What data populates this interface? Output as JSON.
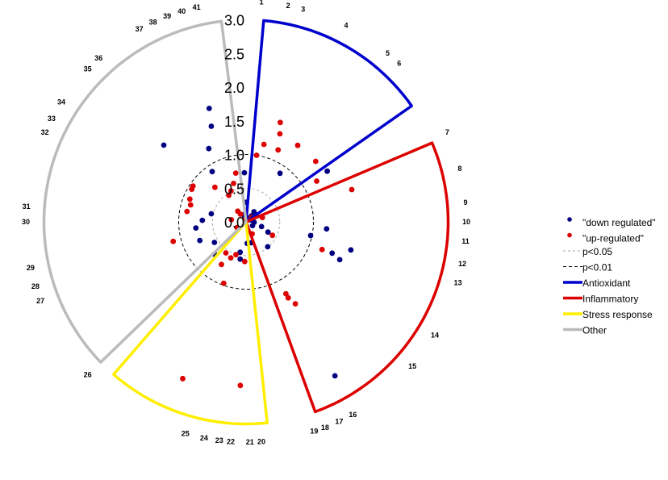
{
  "chart_data": {
    "type": "scatter",
    "subtype": "radial",
    "radial_ticks": [
      "0.0",
      "0.5",
      "1.0",
      "1.5",
      "2.0",
      "2.5",
      "3.0"
    ],
    "radial_range": [
      0,
      3.0
    ],
    "significance_circles": [
      {
        "label": "p<0.05",
        "radius": 0.5,
        "color": "#aaaaaa",
        "dash": "3,3"
      },
      {
        "label": "p<0.01",
        "radius": 1.0,
        "color": "#000000",
        "dash": "4,3"
      }
    ],
    "categories": [
      {
        "label": "Antioxidant",
        "color": "#0000cc",
        "start_angle": 5,
        "end_angle": 55,
        "radius": 3.0,
        "genes": [
          "1",
          "2",
          "3",
          "4",
          "5",
          "6"
        ]
      },
      {
        "label": "Inflammatory",
        "color": "#dd0000",
        "start_angle": 67,
        "end_angle": 160,
        "radius": 3.0,
        "genes": [
          "7",
          "8",
          "9",
          "10",
          "11",
          "12",
          "13",
          "14",
          "15",
          "16",
          "17",
          "18",
          "19"
        ]
      },
      {
        "label": "Stress response",
        "color": "#ffee00",
        "start_angle": 174,
        "end_angle": 221,
        "radius": 3.0,
        "genes": [
          "20",
          "21",
          "22",
          "23",
          "24",
          "25"
        ]
      },
      {
        "label": "Other",
        "color": "#bbbbbb",
        "start_angle": 226,
        "end_angle": 353,
        "radius": 3.0,
        "genes": [
          "26",
          "27",
          "28",
          "29",
          "30",
          "31",
          "32",
          "33",
          "34",
          "35",
          "36",
          "37",
          "38",
          "39",
          "40",
          "41"
        ]
      }
    ],
    "gene_labels": [
      {
        "id": "1",
        "angle": 4
      },
      {
        "id": "2",
        "angle": 11
      },
      {
        "id": "3",
        "angle": 15
      },
      {
        "id": "4",
        "angle": 27
      },
      {
        "id": "5",
        "angle": 40
      },
      {
        "id": "6",
        "angle": 44
      },
      {
        "id": "7",
        "angle": 66
      },
      {
        "id": "8",
        "angle": 76
      },
      {
        "id": "9",
        "angle": 85
      },
      {
        "id": "10",
        "angle": 90
      },
      {
        "id": "11",
        "angle": 95
      },
      {
        "id": "12",
        "angle": 101
      },
      {
        "id": "13",
        "angle": 106
      },
      {
        "id": "14",
        "angle": 121
      },
      {
        "id": "15",
        "angle": 131
      },
      {
        "id": "16",
        "angle": 151
      },
      {
        "id": "17",
        "angle": 155
      },
      {
        "id": "18",
        "angle": 159
      },
      {
        "id": "19",
        "angle": 162
      },
      {
        "id": "20",
        "angle": 176
      },
      {
        "id": "21",
        "angle": 179
      },
      {
        "id": "22",
        "angle": 184
      },
      {
        "id": "23",
        "angle": 187
      },
      {
        "id": "24",
        "angle": 191
      },
      {
        "id": "25",
        "angle": 196
      },
      {
        "id": "26",
        "angle": 226
      },
      {
        "id": "27",
        "angle": 249
      },
      {
        "id": "28",
        "angle": 253
      },
      {
        "id": "29",
        "angle": 258
      },
      {
        "id": "30",
        "angle": 270
      },
      {
        "id": "31",
        "angle": 274
      },
      {
        "id": "32",
        "angle": 294
      },
      {
        "id": "33",
        "angle": 298
      },
      {
        "id": "34",
        "angle": 303
      },
      {
        "id": "35",
        "angle": 314
      },
      {
        "id": "36",
        "angle": 318
      },
      {
        "id": "37",
        "angle": 331
      },
      {
        "id": "38",
        "angle": 335
      },
      {
        "id": "39",
        "angle": 339
      },
      {
        "id": "40",
        "angle": 343
      },
      {
        "id": "41",
        "angle": 347
      }
    ],
    "series": [
      {
        "name": "\"down regulated\"",
        "color": "#000080",
        "points": [
          {
            "angle": 1,
            "r": 0.03
          },
          {
            "angle": 27,
            "r": 0.03
          },
          {
            "angle": 14,
            "r": 0.04
          },
          {
            "angle": 27,
            "r": 0.06
          },
          {
            "angle": 66,
            "r": 0.07
          },
          {
            "angle": 346,
            "r": 0.08
          },
          {
            "angle": 351,
            "r": 0.1
          },
          {
            "angle": 120,
            "r": 0.11
          },
          {
            "angle": 344,
            "r": 0.11
          },
          {
            "angle": 55,
            "r": 0.18
          },
          {
            "angle": 38,
            "r": 0.19
          },
          {
            "angle": 42,
            "r": 0.12
          },
          {
            "angle": 93,
            "r": 0.12
          },
          {
            "angle": 107,
            "r": 0.24
          },
          {
            "angle": 0,
            "r": 0.29
          },
          {
            "angle": 177,
            "r": 0.32
          },
          {
            "angle": 166,
            "r": 0.32
          },
          {
            "angle": 115,
            "r": 0.36
          },
          {
            "angle": 139,
            "r": 0.49
          },
          {
            "angle": 191,
            "r": 0.46
          },
          {
            "angle": 237,
            "r": 0.56
          },
          {
            "angle": 224,
            "r": 0.67
          },
          {
            "angle": 189,
            "r": 0.56
          },
          {
            "angle": 263,
            "r": 0.75
          },
          {
            "angle": 248,
            "r": 0.74
          },
          {
            "angle": 272,
            "r": 0.65
          },
          {
            "angle": 283,
            "r": 0.53
          },
          {
            "angle": 326,
            "r": 0.9
          },
          {
            "angle": 358,
            "r": 0.73
          },
          {
            "angle": 35,
            "r": 0.88
          },
          {
            "angle": 333,
            "r": 1.22
          },
          {
            "angle": 313,
            "r": 1.67
          },
          {
            "angle": 340,
            "r": 1.51
          },
          {
            "angle": 342,
            "r": 1.77
          },
          {
            "angle": 95,
            "r": 1.2
          },
          {
            "angle": 102,
            "r": 0.98
          },
          {
            "angle": 105,
            "r": 1.61
          },
          {
            "angle": 110,
            "r": 1.36
          },
          {
            "angle": 112,
            "r": 1.5
          },
          {
            "angle": 58,
            "r": 1.42
          },
          {
            "angle": 150,
            "r": 2.64
          }
        ]
      },
      {
        "name": "\"up-regulated\"",
        "color": "#dd0000",
        "points": [
          {
            "angle": 346,
            "r": 0.04
          },
          {
            "angle": 52,
            "r": 0.1
          },
          {
            "angle": 75,
            "r": 0.25
          },
          {
            "angle": 153,
            "r": 0.2
          },
          {
            "angle": 182,
            "r": 0.59
          },
          {
            "angle": 117,
            "r": 0.44
          },
          {
            "angle": 238,
            "r": 0.16
          },
          {
            "angle": 324,
            "r": 0.14
          },
          {
            "angle": 322,
            "r": 0.2
          },
          {
            "angle": 278,
            "r": 0.22
          },
          {
            "angle": 334,
            "r": 0.51
          },
          {
            "angle": 348,
            "r": 0.74
          },
          {
            "angle": 342,
            "r": 0.6
          },
          {
            "angle": 197,
            "r": 0.51
          },
          {
            "angle": 203,
            "r": 0.58
          },
          {
            "angle": 213,
            "r": 0.55
          },
          {
            "angle": 210,
            "r": 0.73
          },
          {
            "angle": 200,
            "r": 0.97
          },
          {
            "angle": 9,
            "r": 1.0
          },
          {
            "angle": 24,
            "r": 1.17
          },
          {
            "angle": 13,
            "r": 1.18
          },
          {
            "angle": 21,
            "r": 1.4
          },
          {
            "angle": 19,
            "r": 1.56
          },
          {
            "angle": 34,
            "r": 1.37
          },
          {
            "angle": 49,
            "r": 1.37
          },
          {
            "angle": 60,
            "r": 1.21
          },
          {
            "angle": 73,
            "r": 1.64
          },
          {
            "angle": 280,
            "r": 0.89
          },
          {
            "angle": 318,
            "r": 0.69
          },
          {
            "angle": 304,
            "r": 0.95
          },
          {
            "angle": 301,
            "r": 0.94
          },
          {
            "angle": 292,
            "r": 0.9
          },
          {
            "angle": 287,
            "r": 0.86
          },
          {
            "angle": 327,
            "r": 0.47
          },
          {
            "angle": 149,
            "r": 1.42
          },
          {
            "angle": 151,
            "r": 1.29
          },
          {
            "angle": 151,
            "r": 1.22
          },
          {
            "angle": 110,
            "r": 1.2
          },
          {
            "angle": 255,
            "r": 1.12
          },
          {
            "angle": 202,
            "r": 2.51
          },
          {
            "angle": 182,
            "r": 2.43
          }
        ]
      }
    ]
  }
}
